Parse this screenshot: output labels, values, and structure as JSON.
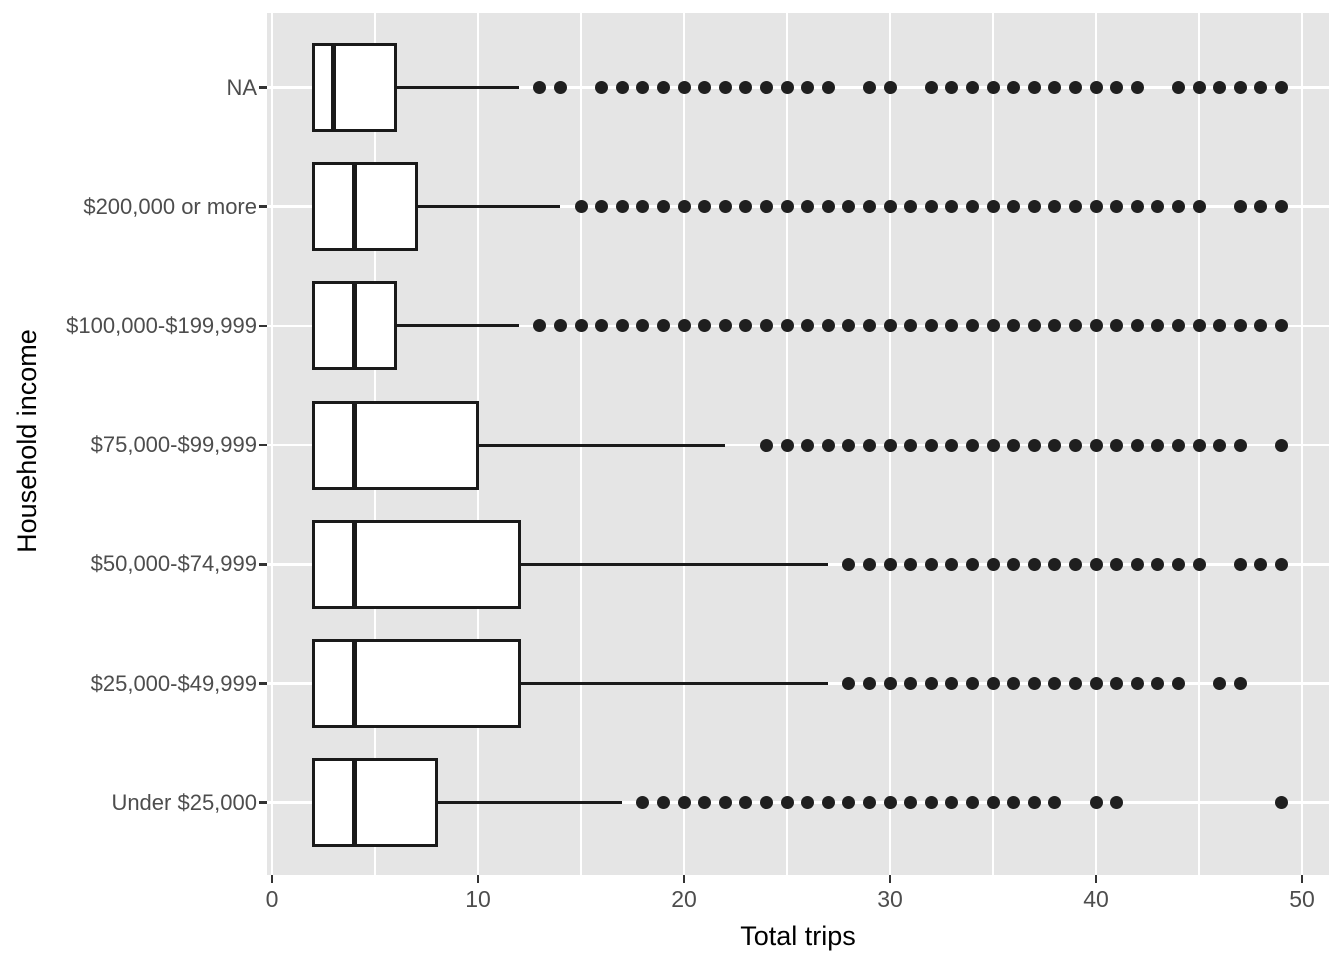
{
  "chart_data": {
    "type": "boxplot",
    "orientation": "horizontal",
    "title": "",
    "xlabel": "Total trips",
    "ylabel": "Household income",
    "x_ticks": [
      0,
      10,
      20,
      30,
      40,
      50
    ],
    "x_minor_ticks": [
      5,
      15,
      25,
      35,
      45
    ],
    "xlim": [
      -0.25,
      51.3
    ],
    "grid": true,
    "legend": "none",
    "panel_bg": "#E5E5E5",
    "grid_color": "#FFFFFF",
    "box_fill": "#FFFFFF",
    "line_color": "#1A1A1A",
    "dot_color": "#1F1F1F",
    "tick_label_color": "#4D4D4D",
    "axis_title_color": "#000000",
    "categories_top_to_bottom": [
      "NA",
      "$200,000 or more",
      "$100,000-$199,999",
      "$75,000-$99,999",
      "$50,000-$74,999",
      "$25,000-$49,999",
      "Under $25,000"
    ],
    "boxes": [
      {
        "category": "NA",
        "q1": 2,
        "median": 3,
        "q3": 6,
        "whisker_low": 2,
        "whisker_high": 12,
        "outliers": [
          13,
          14,
          16,
          17,
          18,
          19,
          20,
          21,
          22,
          23,
          24,
          25,
          26,
          27,
          29,
          30,
          32,
          33,
          34,
          35,
          36,
          37,
          38,
          39,
          40,
          41,
          42,
          44,
          45,
          46,
          47,
          48,
          49
        ]
      },
      {
        "category": "$200,000 or more",
        "q1": 2,
        "median": 4,
        "q3": 7,
        "whisker_low": 2,
        "whisker_high": 14,
        "outliers": [
          15,
          16,
          17,
          18,
          19,
          20,
          21,
          22,
          23,
          24,
          25,
          26,
          27,
          28,
          29,
          30,
          31,
          32,
          33,
          34,
          35,
          36,
          37,
          38,
          39,
          40,
          41,
          42,
          43,
          44,
          45,
          47,
          48,
          49
        ]
      },
      {
        "category": "$100,000-$199,999",
        "q1": 2,
        "median": 4,
        "q3": 6,
        "whisker_low": 2,
        "whisker_high": 12,
        "outliers": [
          13,
          14,
          15,
          16,
          17,
          18,
          19,
          20,
          21,
          22,
          23,
          24,
          25,
          26,
          27,
          28,
          29,
          30,
          31,
          32,
          33,
          34,
          35,
          36,
          37,
          38,
          39,
          40,
          41,
          42,
          43,
          44,
          45,
          46,
          47,
          48,
          49
        ]
      },
      {
        "category": "$75,000-$99,999",
        "q1": 2,
        "median": 4,
        "q3": 10,
        "whisker_low": 2,
        "whisker_high": 22,
        "outliers": [
          24,
          25,
          26,
          27,
          28,
          29,
          30,
          31,
          32,
          33,
          34,
          35,
          36,
          37,
          38,
          39,
          40,
          41,
          42,
          43,
          44,
          45,
          46,
          47,
          49
        ]
      },
      {
        "category": "$50,000-$74,999",
        "q1": 2,
        "median": 4,
        "q3": 12,
        "whisker_low": 2,
        "whisker_high": 27,
        "outliers": [
          28,
          29,
          30,
          31,
          32,
          33,
          34,
          35,
          36,
          37,
          38,
          39,
          40,
          41,
          42,
          43,
          44,
          45,
          47,
          48,
          49
        ]
      },
      {
        "category": "$25,000-$49,999",
        "q1": 2,
        "median": 4,
        "q3": 12,
        "whisker_low": 2,
        "whisker_high": 27,
        "outliers": [
          28,
          29,
          30,
          31,
          32,
          33,
          34,
          35,
          36,
          37,
          38,
          39,
          40,
          41,
          42,
          43,
          44,
          46,
          47
        ]
      },
      {
        "category": "Under $25,000",
        "q1": 2,
        "median": 4,
        "q3": 8,
        "whisker_low": 2,
        "whisker_high": 17,
        "outliers": [
          18,
          19,
          20,
          21,
          22,
          23,
          24,
          25,
          26,
          27,
          28,
          29,
          30,
          31,
          32,
          33,
          34,
          35,
          36,
          37,
          38,
          40,
          41,
          49
        ]
      }
    ]
  }
}
